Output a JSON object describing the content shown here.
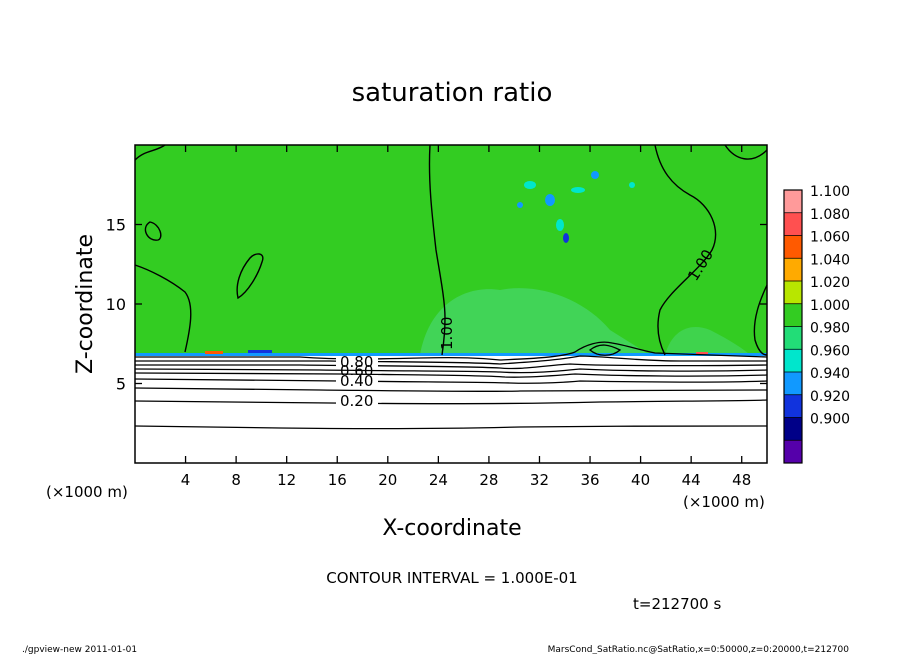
{
  "chart_data": {
    "type": "heatmap",
    "title": "saturation ratio",
    "xlabel": "X-coordinate",
    "ylabel": "Z-coordinate",
    "x_unit_left": "(×1000 m)",
    "x_unit_right": "(×1000 m)",
    "xlim": [
      0,
      50
    ],
    "ylim": [
      0,
      20
    ],
    "xticks": [
      4,
      8,
      12,
      16,
      20,
      24,
      28,
      32,
      36,
      40,
      44,
      48
    ],
    "yticks": [
      5,
      10,
      15
    ],
    "colorbar": {
      "levels": [
        "1.100",
        "1.080",
        "1.060",
        "1.040",
        "1.020",
        "1.000",
        "0.980",
        "0.960",
        "0.940",
        "0.920",
        "0.900"
      ],
      "colors": [
        "#ff9a9a",
        "#ff5050",
        "#ff5a00",
        "#ffaa00",
        "#b8e600",
        "#33cc22",
        "#22dd77",
        "#00e6cc",
        "#1199ff",
        "#1133dd",
        "#000088",
        "#5500aa"
      ]
    },
    "fill_color": "#33cc22",
    "contour_labels": [
      "1.00",
      "1.00",
      "0.80",
      "0.60",
      "0.40",
      "0.20"
    ],
    "contour_interval_text": "CONTOUR INTERVAL = 1.000E-01",
    "time_text": "t=212700 s"
  },
  "footer": {
    "left": "./gpview-new   2011-01-01",
    "right": "MarsCond_SatRatio.nc@SatRatio,x=0:50000,z=0:20000,t=212700"
  }
}
